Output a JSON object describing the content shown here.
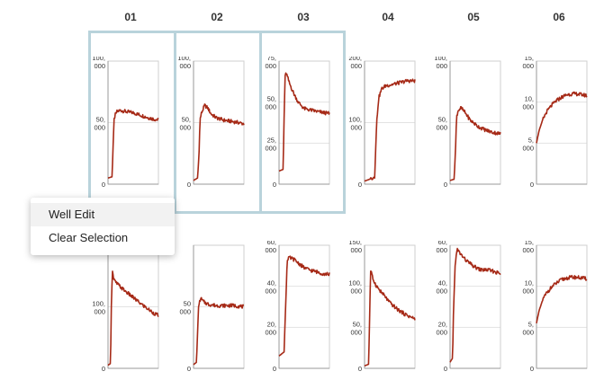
{
  "columns": [
    "01",
    "02",
    "03",
    "04",
    "05",
    "06"
  ],
  "context_menu": {
    "items": [
      "Well Edit",
      "Clear Selection"
    ]
  },
  "colors": {
    "trace": "#a62a17",
    "selection": "#b9d3db",
    "axis": "#999999"
  },
  "chart_data": [
    {
      "type": "line",
      "column": "01",
      "row": 1,
      "selected": true,
      "ylim": [
        0,
        100000
      ],
      "y_tick_labels": [
        [
          "100,",
          "000"
        ],
        [
          "50,",
          "000"
        ],
        [
          "0"
        ]
      ],
      "y_ticks": [
        100000,
        50000,
        0
      ],
      "x": [
        0,
        0.08,
        0.1,
        0.12,
        0.14,
        0.18,
        0.25,
        0.35,
        0.5,
        0.65,
        0.8,
        0.9,
        1
      ],
      "y": [
        5000,
        6000,
        30000,
        52000,
        56000,
        59000,
        60000,
        59000,
        58000,
        56000,
        54000,
        53000,
        52000
      ]
    },
    {
      "type": "line",
      "column": "02",
      "row": 1,
      "selected": true,
      "ylim": [
        0,
        100000
      ],
      "y_tick_labels": [
        [
          "100,",
          "000"
        ],
        [
          "50,",
          "000"
        ],
        [
          "0"
        ]
      ],
      "y_ticks": [
        100000,
        50000,
        0
      ],
      "x": [
        0,
        0.08,
        0.11,
        0.13,
        0.16,
        0.22,
        0.28,
        0.35,
        0.45,
        0.6,
        0.75,
        0.9,
        1
      ],
      "y": [
        3000,
        5000,
        25000,
        53000,
        58000,
        64000,
        62000,
        57000,
        54000,
        52000,
        51000,
        50000,
        49000
      ]
    },
    {
      "type": "line",
      "column": "03",
      "row": 1,
      "selected": true,
      "ylim": [
        0,
        75000
      ],
      "y_tick_labels": [
        [
          "75,",
          "000"
        ],
        [
          "50,",
          "000"
        ],
        [
          "25,",
          "000"
        ],
        [
          "0"
        ]
      ],
      "y_ticks": [
        75000,
        50000,
        25000,
        0
      ],
      "x": [
        0,
        0.08,
        0.1,
        0.12,
        0.14,
        0.2,
        0.28,
        0.38,
        0.5,
        0.65,
        0.8,
        1
      ],
      "y": [
        8000,
        9000,
        40000,
        65000,
        68000,
        62000,
        56000,
        50000,
        46000,
        45000,
        44000,
        43000
      ]
    },
    {
      "type": "line",
      "column": "04",
      "row": 1,
      "selected": false,
      "ylim": [
        0,
        200000
      ],
      "y_tick_labels": [
        [
          "200,",
          "000"
        ],
        [
          "100,",
          "000"
        ],
        [
          "0"
        ]
      ],
      "y_ticks": [
        200000,
        100000,
        0
      ],
      "x": [
        0,
        0.1,
        0.2,
        0.24,
        0.28,
        0.34,
        0.42,
        0.55,
        0.7,
        0.85,
        1
      ],
      "y": [
        5000,
        8000,
        12000,
        100000,
        140000,
        155000,
        160000,
        162000,
        165000,
        168000,
        168000
      ]
    },
    {
      "type": "line",
      "column": "05",
      "row": 1,
      "selected": false,
      "ylim": [
        0,
        100000
      ],
      "y_tick_labels": [
        [
          "100,",
          "000"
        ],
        [
          "50,",
          "000"
        ],
        [
          "0"
        ]
      ],
      "y_ticks": [
        100000,
        50000,
        0
      ],
      "x": [
        0,
        0.08,
        0.11,
        0.13,
        0.16,
        0.22,
        0.3,
        0.4,
        0.55,
        0.7,
        0.85,
        1
      ],
      "y": [
        3000,
        4000,
        30000,
        55000,
        60000,
        62000,
        58000,
        52000,
        47000,
        44000,
        42000,
        41000
      ]
    },
    {
      "type": "line",
      "column": "06",
      "row": 1,
      "selected": false,
      "ylim": [
        0,
        15000
      ],
      "y_tick_labels": [
        [
          "15,",
          "000"
        ],
        [
          "10,",
          "000"
        ],
        [
          "5,",
          "000"
        ],
        [
          "0"
        ]
      ],
      "y_ticks": [
        15000,
        10000,
        5000,
        0
      ],
      "x": [
        0,
        0.05,
        0.12,
        0.2,
        0.3,
        0.4,
        0.5,
        0.6,
        0.7,
        0.8,
        0.9,
        1
      ],
      "y": [
        5000,
        6500,
        7800,
        8800,
        9600,
        10200,
        10600,
        10900,
        11000,
        11000,
        10900,
        10800
      ]
    },
    {
      "type": "line",
      "column": "01",
      "row": 2,
      "selected": false,
      "ylim": [
        0,
        200000
      ],
      "y_tick_labels": [
        [
          "100,",
          "000"
        ],
        [
          "0"
        ]
      ],
      "y_ticks": [
        100000,
        0
      ],
      "x": [
        0,
        0.05,
        0.07,
        0.09,
        0.11,
        0.15,
        0.25,
        0.35,
        0.5,
        0.65,
        0.8,
        0.9,
        1
      ],
      "y": [
        5000,
        8000,
        120000,
        160000,
        145000,
        140000,
        132000,
        125000,
        115000,
        105000,
        96000,
        90000,
        86000
      ]
    },
    {
      "type": "line",
      "column": "02",
      "row": 2,
      "selected": false,
      "ylim": [
        0,
        100000
      ],
      "y_tick_labels": [
        [
          "50",
          "000"
        ],
        [
          "0"
        ]
      ],
      "y_ticks": [
        50000,
        0
      ],
      "x": [
        0,
        0.06,
        0.08,
        0.1,
        0.14,
        0.2,
        0.3,
        0.45,
        0.6,
        0.8,
        1
      ],
      "y": [
        3000,
        5000,
        30000,
        50000,
        57000,
        54000,
        52000,
        51000,
        51000,
        51000,
        50000
      ]
    },
    {
      "type": "line",
      "column": "03",
      "row": 2,
      "selected": false,
      "ylim": [
        0,
        60000
      ],
      "y_tick_labels": [
        [
          "60,",
          "000"
        ],
        [
          "40,",
          "000"
        ],
        [
          "20,",
          "000"
        ],
        [
          "0"
        ]
      ],
      "y_ticks": [
        60000,
        40000,
        20000,
        0
      ],
      "x": [
        0,
        0.1,
        0.13,
        0.16,
        0.2,
        0.3,
        0.4,
        0.5,
        0.6,
        0.75,
        0.9,
        1
      ],
      "y": [
        6000,
        8000,
        30000,
        52000,
        54000,
        53000,
        51000,
        49000,
        48000,
        47000,
        46000,
        46000
      ]
    },
    {
      "type": "line",
      "column": "04",
      "row": 2,
      "selected": false,
      "ylim": [
        0,
        150000
      ],
      "y_tick_labels": [
        [
          "150,",
          "000"
        ],
        [
          "100,",
          "000"
        ],
        [
          "50,",
          "000"
        ],
        [
          "0"
        ]
      ],
      "y_ticks": [
        150000,
        100000,
        50000,
        0
      ],
      "x": [
        0,
        0.08,
        0.1,
        0.12,
        0.16,
        0.22,
        0.3,
        0.4,
        0.5,
        0.65,
        0.8,
        1
      ],
      "y": [
        3000,
        5000,
        60000,
        120000,
        110000,
        102000,
        95000,
        88000,
        80000,
        72000,
        66000,
        60000
      ]
    },
    {
      "type": "line",
      "column": "05",
      "row": 2,
      "selected": false,
      "ylim": [
        0,
        60000
      ],
      "y_tick_labels": [
        [
          "60,",
          "000"
        ],
        [
          "40,",
          "000"
        ],
        [
          "20,",
          "000"
        ],
        [
          "0"
        ]
      ],
      "y_ticks": [
        60000,
        40000,
        20000,
        0
      ],
      "x": [
        0,
        0.05,
        0.07,
        0.1,
        0.14,
        0.2,
        0.3,
        0.45,
        0.6,
        0.75,
        0.9,
        1
      ],
      "y": [
        3000,
        5000,
        30000,
        50000,
        58000,
        56000,
        53000,
        50000,
        48000,
        48000,
        47000,
        46000
      ]
    },
    {
      "type": "line",
      "column": "06",
      "row": 2,
      "selected": false,
      "ylim": [
        0,
        15000
      ],
      "y_tick_labels": [
        [
          "15,",
          "000"
        ],
        [
          "10,",
          "000"
        ],
        [
          "5,",
          "000"
        ],
        [
          "0"
        ]
      ],
      "y_ticks": [
        15000,
        10000,
        5000,
        0
      ],
      "x": [
        0,
        0.05,
        0.12,
        0.2,
        0.3,
        0.4,
        0.5,
        0.6,
        0.7,
        0.8,
        0.9,
        1
      ],
      "y": [
        5500,
        7000,
        8300,
        9200,
        9900,
        10400,
        10800,
        11000,
        11100,
        11100,
        11000,
        10900
      ]
    }
  ]
}
